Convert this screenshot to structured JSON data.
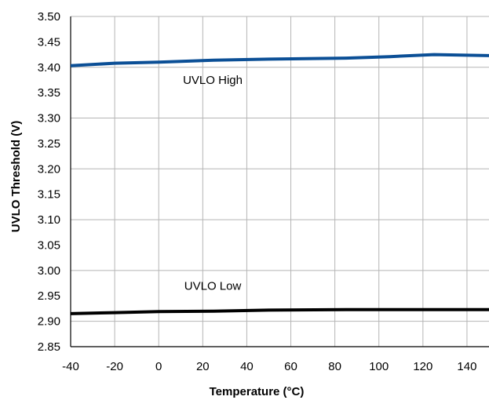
{
  "chart_data": {
    "type": "line",
    "xlabel": "Temperature (°C)",
    "ylabel": "UVLO Threshold (V)",
    "xlim": [
      -40,
      150
    ],
    "ylim": [
      2.85,
      3.5
    ],
    "x_ticks": [
      -40,
      -20,
      0,
      20,
      40,
      60,
      80,
      100,
      120,
      140
    ],
    "x_tick_labels": [
      "-40",
      "-20",
      "0",
      "20",
      "40",
      "60",
      "80",
      "100",
      "120",
      "140"
    ],
    "y_ticks": [
      2.85,
      2.9,
      2.95,
      3.0,
      3.05,
      3.1,
      3.15,
      3.2,
      3.25,
      3.3,
      3.35,
      3.4,
      3.45,
      3.5
    ],
    "y_tick_labels": [
      "2.85",
      "2.90",
      "2.95",
      "3.00",
      "3.05",
      "3.10",
      "3.15",
      "3.20",
      "3.25",
      "3.30",
      "3.35",
      "3.40",
      "3.45",
      "3.50"
    ],
    "grid": true,
    "series": [
      {
        "name": "UVLO High",
        "color": "#0b4f96",
        "x": [
          -40,
          -20,
          0,
          25,
          50,
          85,
          105,
          125,
          150
        ],
        "y": [
          3.403,
          3.408,
          3.41,
          3.414,
          3.416,
          3.418,
          3.421,
          3.425,
          3.423
        ]
      },
      {
        "name": "UVLO Low",
        "color": "#000000",
        "x": [
          -40,
          -20,
          0,
          25,
          50,
          85,
          105,
          125,
          150
        ],
        "y": [
          2.915,
          2.917,
          2.919,
          2.92,
          2.922,
          2.923,
          2.923,
          2.923,
          2.923
        ]
      }
    ],
    "annotations": [
      {
        "text": "UVLO High",
        "x": 6,
        "y": 3.375
      },
      {
        "text": "UVLO Low",
        "x": 6,
        "y": 2.97
      }
    ]
  }
}
